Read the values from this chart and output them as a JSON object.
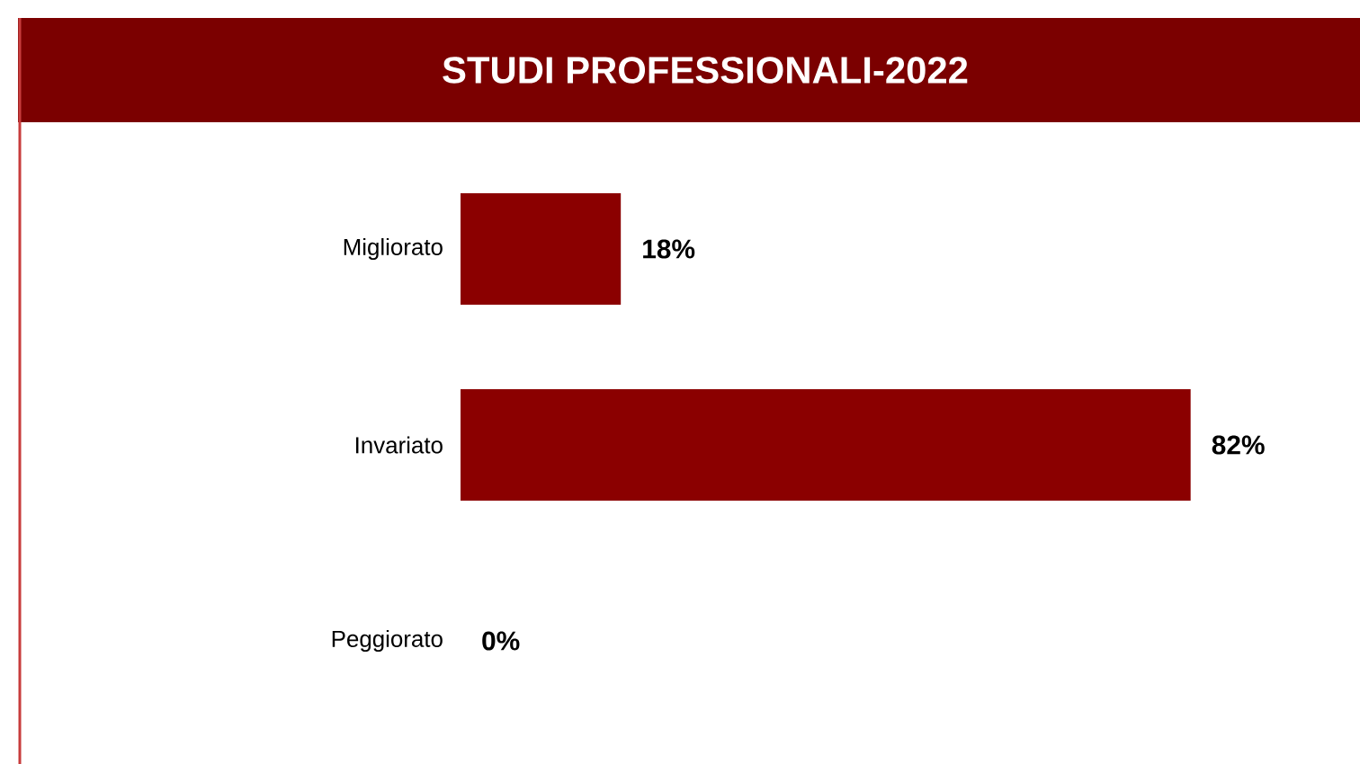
{
  "chart_data": {
    "type": "bar",
    "orientation": "horizontal",
    "title": "STUDI PROFESSIONALI-2022",
    "categories": [
      "Migliorato",
      "Invariato",
      "Peggiorato"
    ],
    "values": [
      18,
      82,
      0
    ],
    "value_labels": [
      "18%",
      "82%",
      "0%"
    ],
    "color": "#8b0000"
  }
}
